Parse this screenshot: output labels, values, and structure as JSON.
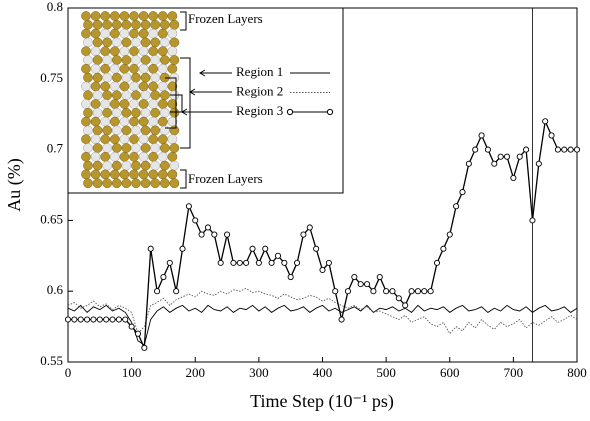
{
  "chart_data": {
    "type": "line",
    "xlabel": "Time Step (10⁻¹ ps)",
    "ylabel": "Au (%)",
    "xlim": [
      0,
      800
    ],
    "xticks": [
      0,
      100,
      200,
      300,
      400,
      500,
      600,
      700,
      800
    ],
    "ylim": [
      0.55,
      0.8
    ],
    "yticks": [
      0.55,
      0.6,
      0.65,
      0.7,
      0.75,
      0.8
    ],
    "vline": 730,
    "annotations": [
      "Frozen Layers",
      "Frozen Layers"
    ],
    "x": [
      0,
      10,
      20,
      30,
      40,
      50,
      60,
      70,
      80,
      90,
      100,
      110,
      120,
      130,
      140,
      150,
      160,
      170,
      180,
      190,
      200,
      210,
      220,
      230,
      240,
      250,
      260,
      270,
      280,
      290,
      300,
      310,
      320,
      330,
      340,
      350,
      360,
      370,
      380,
      390,
      400,
      410,
      420,
      430,
      440,
      450,
      460,
      470,
      480,
      490,
      500,
      510,
      520,
      530,
      540,
      550,
      560,
      570,
      580,
      590,
      600,
      610,
      620,
      630,
      640,
      650,
      660,
      670,
      680,
      690,
      700,
      710,
      720,
      730,
      740,
      750,
      760,
      770,
      780,
      790,
      800
    ],
    "series": [
      {
        "name": "Region 1",
        "color": "#000000",
        "style": "solid",
        "values": [
          0.588,
          0.586,
          0.59,
          0.585,
          0.589,
          0.587,
          0.59,
          0.586,
          0.588,
          0.585,
          0.578,
          0.565,
          0.562,
          0.58,
          0.586,
          0.589,
          0.585,
          0.588,
          0.59,
          0.586,
          0.588,
          0.585,
          0.59,
          0.587,
          0.586,
          0.589,
          0.585,
          0.588,
          0.587,
          0.59,
          0.586,
          0.589,
          0.585,
          0.588,
          0.59,
          0.586,
          0.587,
          0.589,
          0.585,
          0.588,
          0.59,
          0.586,
          0.588,
          0.585,
          0.587,
          0.589,
          0.586,
          0.59,
          0.585,
          0.588,
          0.587,
          0.589,
          0.586,
          0.588,
          0.585,
          0.59,
          0.586,
          0.588,
          0.587,
          0.589,
          0.585,
          0.588,
          0.59,
          0.586,
          0.587,
          0.589,
          0.585,
          0.588,
          0.586,
          0.59,
          0.587,
          0.586,
          0.589,
          0.585,
          0.588,
          0.59,
          0.586,
          0.587,
          0.589,
          0.585,
          0.588
        ]
      },
      {
        "name": "Region 2",
        "color": "#555555",
        "style": "dotted",
        "values": [
          0.59,
          0.592,
          0.588,
          0.59,
          0.593,
          0.589,
          0.591,
          0.587,
          0.59,
          0.588,
          0.585,
          0.57,
          0.575,
          0.59,
          0.592,
          0.595,
          0.59,
          0.594,
          0.596,
          0.598,
          0.596,
          0.6,
          0.598,
          0.597,
          0.6,
          0.598,
          0.601,
          0.6,
          0.602,
          0.599,
          0.6,
          0.598,
          0.597,
          0.595,
          0.598,
          0.596,
          0.594,
          0.595,
          0.597,
          0.596,
          0.593,
          0.595,
          0.592,
          0.59,
          0.588,
          0.59,
          0.587,
          0.589,
          0.585,
          0.586,
          0.584,
          0.582,
          0.58,
          0.583,
          0.578,
          0.58,
          0.582,
          0.577,
          0.575,
          0.578,
          0.57,
          0.575,
          0.572,
          0.578,
          0.574,
          0.58,
          0.576,
          0.573,
          0.578,
          0.575,
          0.577,
          0.58,
          0.574,
          0.578,
          0.576,
          0.579,
          0.582,
          0.578,
          0.58,
          0.583,
          0.58
        ]
      },
      {
        "name": "Region 3",
        "color": "#000000",
        "style": "circles",
        "values": [
          0.58,
          0.58,
          0.58,
          0.58,
          0.58,
          0.58,
          0.58,
          0.58,
          0.58,
          0.58,
          0.575,
          0.57,
          0.56,
          0.63,
          0.6,
          0.61,
          0.62,
          0.6,
          0.63,
          0.66,
          0.65,
          0.64,
          0.645,
          0.64,
          0.62,
          0.64,
          0.62,
          0.62,
          0.62,
          0.63,
          0.62,
          0.63,
          0.62,
          0.625,
          0.62,
          0.61,
          0.62,
          0.64,
          0.645,
          0.63,
          0.615,
          0.62,
          0.6,
          0.58,
          0.6,
          0.61,
          0.605,
          0.605,
          0.6,
          0.61,
          0.6,
          0.6,
          0.595,
          0.59,
          0.6,
          0.6,
          0.6,
          0.6,
          0.62,
          0.63,
          0.64,
          0.66,
          0.67,
          0.69,
          0.7,
          0.71,
          0.7,
          0.69,
          0.695,
          0.695,
          0.68,
          0.695,
          0.7,
          0.65,
          0.69,
          0.72,
          0.71,
          0.7,
          0.7,
          0.7,
          0.7
        ]
      }
    ]
  }
}
